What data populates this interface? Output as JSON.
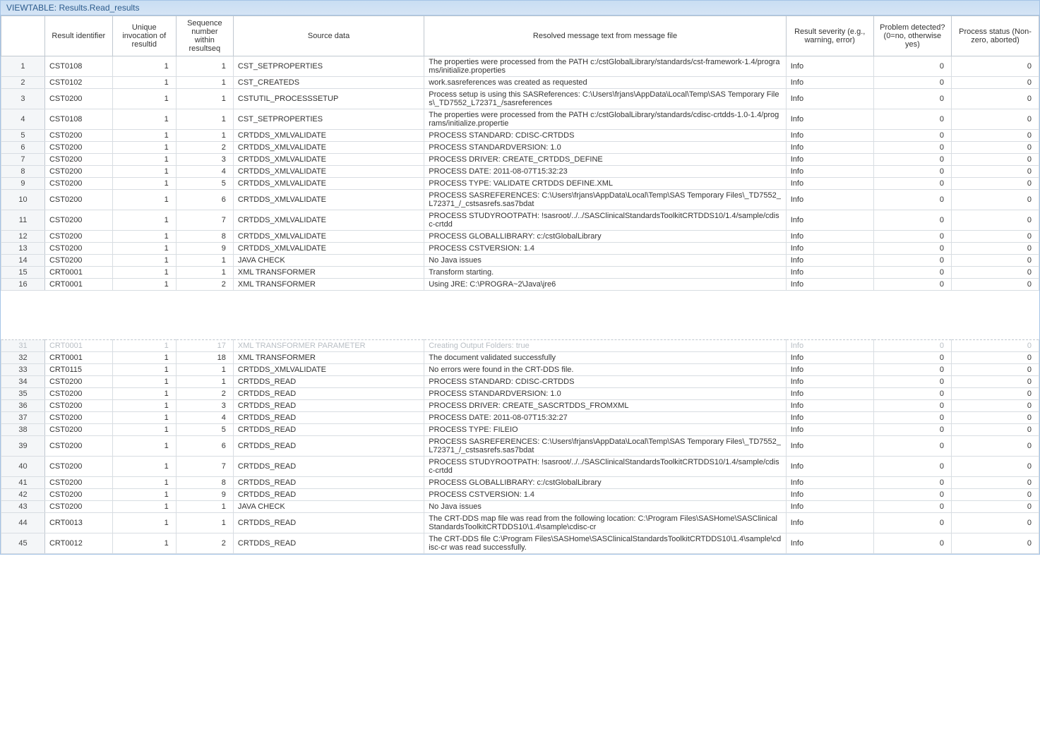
{
  "window": {
    "title": "VIEWTABLE: Results.Read_results"
  },
  "columns": [
    {
      "key": "rownum",
      "label": "",
      "class": "col-rownum"
    },
    {
      "key": "resultid",
      "label": "Result identifier",
      "class": "col-resultid"
    },
    {
      "key": "invoc",
      "label": "Unique invocation of resultid",
      "class": "col-invoc"
    },
    {
      "key": "seq",
      "label": "Sequence number within resultseq",
      "class": "col-seq"
    },
    {
      "key": "source",
      "label": "Source data",
      "class": "col-source"
    },
    {
      "key": "msg",
      "label": "Resolved message text from message file",
      "class": "col-msg"
    },
    {
      "key": "severity",
      "label": "Result severity (e.g., warning, error)",
      "class": "col-severity"
    },
    {
      "key": "problem",
      "label": "Problem detected? (0=no, otherwise yes)",
      "class": "col-problem"
    },
    {
      "key": "status",
      "label": "Process status (Non-zero, aborted)",
      "class": "col-status"
    }
  ],
  "rows_top": [
    {
      "n": "1",
      "id": "CST0108",
      "inv": "1",
      "seq": "1",
      "src": "CST_SETPROPERTIES",
      "msg": "The properties were processed from the PATH c:/cstGlobalLibrary/standards/cst-framework-1.4/programs/initialize.properties",
      "sev": "Info",
      "pd": "0",
      "ps": "0"
    },
    {
      "n": "2",
      "id": "CST0102",
      "inv": "1",
      "seq": "1",
      "src": "CST_CREATEDS",
      "msg": "work.sasreferences was created as requested",
      "sev": "Info",
      "pd": "0",
      "ps": "0"
    },
    {
      "n": "3",
      "id": "CST0200",
      "inv": "1",
      "seq": "1",
      "src": "CSTUTIL_PROCESSSETUP",
      "msg": "Process setup is using this SASReferences: C:\\Users\\frjans\\AppData\\Local\\Temp\\SAS Temporary Files\\_TD7552_L72371_/sasreferences",
      "sev": "Info",
      "pd": "0",
      "ps": "0"
    },
    {
      "n": "4",
      "id": "CST0108",
      "inv": "1",
      "seq": "1",
      "src": "CST_SETPROPERTIES",
      "msg": "The properties were processed from the PATH c:/cstGlobalLibrary/standards/cdisc-crtdds-1.0-1.4/programs/initialize.propertie",
      "sev": "Info",
      "pd": "0",
      "ps": "0"
    },
    {
      "n": "5",
      "id": "CST0200",
      "inv": "1",
      "seq": "1",
      "src": "CRTDDS_XMLVALIDATE",
      "msg": "PROCESS STANDARD: CDISC-CRTDDS",
      "sev": "Info",
      "pd": "0",
      "ps": "0"
    },
    {
      "n": "6",
      "id": "CST0200",
      "inv": "1",
      "seq": "2",
      "src": "CRTDDS_XMLVALIDATE",
      "msg": "PROCESS STANDARDVERSION: 1.0",
      "sev": "Info",
      "pd": "0",
      "ps": "0"
    },
    {
      "n": "7",
      "id": "CST0200",
      "inv": "1",
      "seq": "3",
      "src": "CRTDDS_XMLVALIDATE",
      "msg": "PROCESS DRIVER: CREATE_CRTDDS_DEFINE",
      "sev": "Info",
      "pd": "0",
      "ps": "0"
    },
    {
      "n": "8",
      "id": "CST0200",
      "inv": "1",
      "seq": "4",
      "src": "CRTDDS_XMLVALIDATE",
      "msg": "PROCESS DATE: 2011-08-07T15:32:23",
      "sev": "Info",
      "pd": "0",
      "ps": "0"
    },
    {
      "n": "9",
      "id": "CST0200",
      "inv": "1",
      "seq": "5",
      "src": "CRTDDS_XMLVALIDATE",
      "msg": "PROCESS TYPE: VALIDATE CRTDDS DEFINE.XML",
      "sev": "Info",
      "pd": "0",
      "ps": "0"
    },
    {
      "n": "10",
      "id": "CST0200",
      "inv": "1",
      "seq": "6",
      "src": "CRTDDS_XMLVALIDATE",
      "msg": "PROCESS SASREFERENCES: C:\\Users\\frjans\\AppData\\Local\\Temp\\SAS Temporary Files\\_TD7552_L72371_/_cstsasrefs.sas7bdat",
      "sev": "Info",
      "pd": "0",
      "ps": "0"
    },
    {
      "n": "11",
      "id": "CST0200",
      "inv": "1",
      "seq": "7",
      "src": "CRTDDS_XMLVALIDATE",
      "msg": "PROCESS STUDYROOTPATH: !sasroot/../../SASClinicalStandardsToolkitCRTDDS10/1.4/sample/cdisc-crtdd",
      "sev": "Info",
      "pd": "0",
      "ps": "0"
    },
    {
      "n": "12",
      "id": "CST0200",
      "inv": "1",
      "seq": "8",
      "src": "CRTDDS_XMLVALIDATE",
      "msg": "PROCESS GLOBALLIBRARY: c:/cstGlobalLibrary",
      "sev": "Info",
      "pd": "0",
      "ps": "0"
    },
    {
      "n": "13",
      "id": "CST0200",
      "inv": "1",
      "seq": "9",
      "src": "CRTDDS_XMLVALIDATE",
      "msg": "PROCESS CSTVERSION: 1.4",
      "sev": "Info",
      "pd": "0",
      "ps": "0"
    },
    {
      "n": "14",
      "id": "CST0200",
      "inv": "1",
      "seq": "1",
      "src": "JAVA CHECK",
      "msg": "No Java issues",
      "sev": "Info",
      "pd": "0",
      "ps": "0"
    },
    {
      "n": "15",
      "id": "CRT0001",
      "inv": "1",
      "seq": "1",
      "src": "XML TRANSFORMER",
      "msg": "Transform starting.",
      "sev": "Info",
      "pd": "0",
      "ps": "0"
    },
    {
      "n": "16",
      "id": "CRT0001",
      "inv": "1",
      "seq": "2",
      "src": "XML TRANSFORMER",
      "msg": "Using JRE: C:\\PROGRA~2\\Java\\jre6",
      "sev": "Info",
      "pd": "0",
      "ps": "0"
    }
  ],
  "row_faded": {
    "n": "31",
    "id": "CRT0001",
    "inv": "1",
    "seq": "17",
    "src": "XML TRANSFORMER PARAMETER",
    "msg": "Creating Output Folders: true",
    "sev": "Info",
    "pd": "0",
    "ps": "0"
  },
  "rows_bottom": [
    {
      "n": "32",
      "id": "CRT0001",
      "inv": "1",
      "seq": "18",
      "src": "XML TRANSFORMER",
      "msg": "The document validated successfully",
      "sev": "Info",
      "pd": "0",
      "ps": "0"
    },
    {
      "n": "33",
      "id": "CRT0115",
      "inv": "1",
      "seq": "1",
      "src": "CRTDDS_XMLVALIDATE",
      "msg": "No errors were found in the CRT-DDS file.",
      "sev": "Info",
      "pd": "0",
      "ps": "0"
    },
    {
      "n": "34",
      "id": "CST0200",
      "inv": "1",
      "seq": "1",
      "src": "CRTDDS_READ",
      "msg": "PROCESS STANDARD: CDISC-CRTDDS",
      "sev": "Info",
      "pd": "0",
      "ps": "0"
    },
    {
      "n": "35",
      "id": "CST0200",
      "inv": "1",
      "seq": "2",
      "src": "CRTDDS_READ",
      "msg": "PROCESS STANDARDVERSION: 1.0",
      "sev": "Info",
      "pd": "0",
      "ps": "0"
    },
    {
      "n": "36",
      "id": "CST0200",
      "inv": "1",
      "seq": "3",
      "src": "CRTDDS_READ",
      "msg": "PROCESS DRIVER: CREATE_SASCRTDDS_FROMXML",
      "sev": "Info",
      "pd": "0",
      "ps": "0"
    },
    {
      "n": "37",
      "id": "CST0200",
      "inv": "1",
      "seq": "4",
      "src": "CRTDDS_READ",
      "msg": "PROCESS DATE: 2011-08-07T15:32:27",
      "sev": "Info",
      "pd": "0",
      "ps": "0"
    },
    {
      "n": "38",
      "id": "CST0200",
      "inv": "1",
      "seq": "5",
      "src": "CRTDDS_READ",
      "msg": "PROCESS TYPE: FILEIO",
      "sev": "Info",
      "pd": "0",
      "ps": "0"
    },
    {
      "n": "39",
      "id": "CST0200",
      "inv": "1",
      "seq": "6",
      "src": "CRTDDS_READ",
      "msg": "PROCESS SASREFERENCES: C:\\Users\\frjans\\AppData\\Local\\Temp\\SAS Temporary Files\\_TD7552_L72371_/_cstsasrefs.sas7bdat",
      "sev": "Info",
      "pd": "0",
      "ps": "0"
    },
    {
      "n": "40",
      "id": "CST0200",
      "inv": "1",
      "seq": "7",
      "src": "CRTDDS_READ",
      "msg": "PROCESS STUDYROOTPATH: !sasroot/../../SASClinicalStandardsToolkitCRTDDS10/1.4/sample/cdisc-crtdd",
      "sev": "Info",
      "pd": "0",
      "ps": "0"
    },
    {
      "n": "41",
      "id": "CST0200",
      "inv": "1",
      "seq": "8",
      "src": "CRTDDS_READ",
      "msg": "PROCESS GLOBALLIBRARY: c:/cstGlobalLibrary",
      "sev": "Info",
      "pd": "0",
      "ps": "0"
    },
    {
      "n": "42",
      "id": "CST0200",
      "inv": "1",
      "seq": "9",
      "src": "CRTDDS_READ",
      "msg": "PROCESS CSTVERSION: 1.4",
      "sev": "Info",
      "pd": "0",
      "ps": "0"
    },
    {
      "n": "43",
      "id": "CST0200",
      "inv": "1",
      "seq": "1",
      "src": "JAVA CHECK",
      "msg": "No Java issues",
      "sev": "Info",
      "pd": "0",
      "ps": "0"
    },
    {
      "n": "44",
      "id": "CRT0013",
      "inv": "1",
      "seq": "1",
      "src": "CRTDDS_READ",
      "msg": "The CRT-DDS map file was read from the following location: C:\\Program Files\\SASHome\\SASClinicalStandardsToolkitCRTDDS10\\1.4\\sample\\cdisc-cr",
      "sev": "Info",
      "pd": "0",
      "ps": "0"
    },
    {
      "n": "45",
      "id": "CRT0012",
      "inv": "1",
      "seq": "2",
      "src": "CRTDDS_READ",
      "msg": "The CRT-DDS file C:\\Program Files\\SASHome\\SASClinicalStandardsToolkitCRTDDS10\\1.4\\sample\\cdisc-cr was read successfully.",
      "sev": "Info",
      "pd": "0",
      "ps": "0"
    }
  ]
}
